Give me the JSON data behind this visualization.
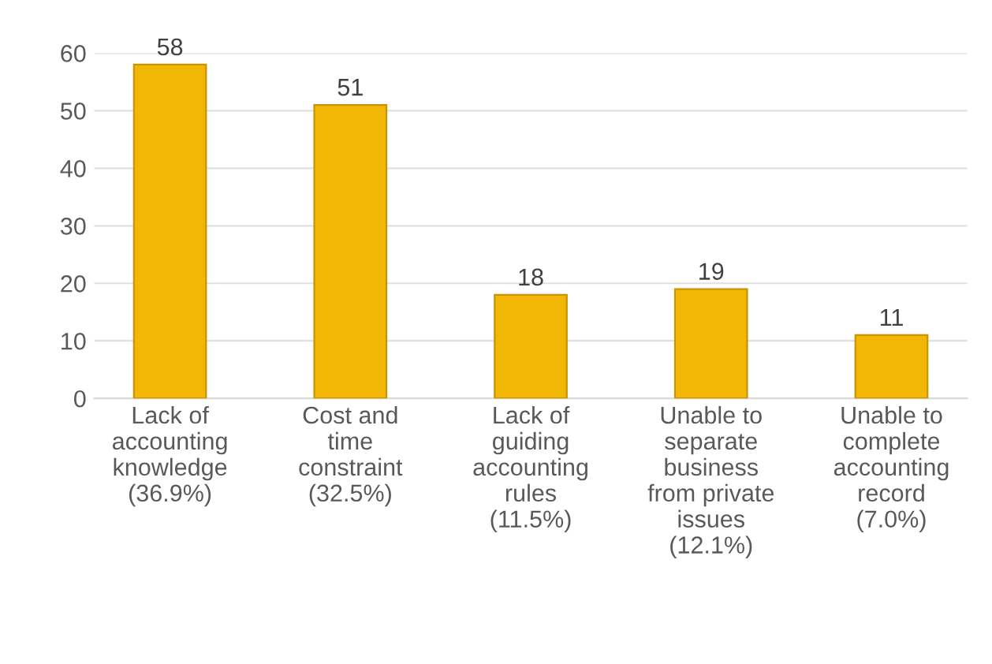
{
  "chart_data": {
    "type": "bar",
    "categories": [
      "Lack of\naccounting\nknowledge\n(36.9%)",
      "Cost and\ntime\nconstraint\n(32.5%)",
      "Lack of\nguiding\naccounting\nrules\n(11.5%)",
      "Unable to\nseparate\nbusiness\nfrom private\nissues\n(12.1%)",
      "Unable to\ncomplete\naccounting\nrecord\n(7.0%)"
    ],
    "values": [
      58,
      51,
      18,
      19,
      11
    ],
    "color": "#f2b705",
    "ylim": [
      0,
      60
    ],
    "yticks": [
      0,
      10,
      20,
      30,
      40,
      50,
      60
    ],
    "grid": "y",
    "data_labels": true
  }
}
